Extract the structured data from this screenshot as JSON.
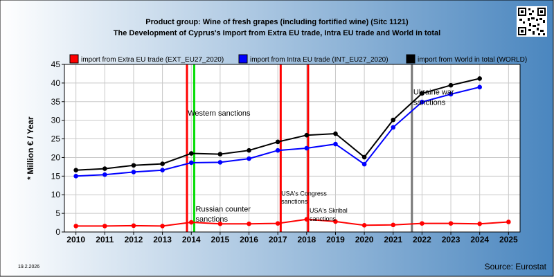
{
  "title_line1": "Product group: Wine of fresh grapes (including fortified wine) (Sitc 1121)",
  "title_line2": "The Development of Cyprus's Import from Extra EU trade, Intra EU trade and World in total",
  "ylabel": "* Million € / Year",
  "source": "Source: Eurostat",
  "date": "19.2.2026",
  "qr_icon": "qr-code-icon",
  "background": {
    "left": "#ffffff",
    "right": "#4a86bf"
  },
  "chart_data": {
    "type": "line",
    "x": [
      2010,
      2011,
      2012,
      2013,
      2014,
      2015,
      2016,
      2017,
      2018,
      2019,
      2020,
      2021,
      2022,
      2023,
      2024,
      2025
    ],
    "ylim": [
      0,
      45
    ],
    "yticks": [
      0,
      5,
      10,
      15,
      20,
      25,
      30,
      35,
      40,
      45
    ],
    "xlim": [
      2009.6,
      2025.4
    ],
    "grid": true,
    "legend_placement": "top",
    "series": [
      {
        "name": "import from Extra EU trade (EXT_EU27_2020)",
        "color": "#ff0000",
        "x": [
          2010,
          2011,
          2012,
          2013,
          2014,
          2015,
          2016,
          2017,
          2018,
          2019,
          2020,
          2021,
          2022,
          2023,
          2024,
          2025
        ],
        "values": [
          1.6,
          1.6,
          1.7,
          1.6,
          2.6,
          2.2,
          2.2,
          2.3,
          3.4,
          2.8,
          1.8,
          1.9,
          2.3,
          2.3,
          2.2,
          2.7
        ]
      },
      {
        "name": "import from Intra EU trade (INT_EU27_2020)",
        "color": "#0000ff",
        "x": [
          2010,
          2011,
          2012,
          2013,
          2014,
          2015,
          2016,
          2017,
          2018,
          2019,
          2020,
          2021,
          2022,
          2023,
          2024
        ],
        "values": [
          15.0,
          15.4,
          16.1,
          16.6,
          18.6,
          18.7,
          19.7,
          21.9,
          22.5,
          23.6,
          18.2,
          28.1,
          34.9,
          37.0,
          38.9
        ]
      },
      {
        "name": "import from World in total (WORLD)",
        "color": "#000000",
        "x": [
          2010,
          2011,
          2012,
          2013,
          2014,
          2015,
          2016,
          2017,
          2018,
          2019,
          2020,
          2021,
          2022,
          2023,
          2024
        ],
        "values": [
          16.6,
          17.0,
          17.9,
          18.3,
          21.1,
          20.9,
          21.9,
          24.2,
          26.0,
          26.4,
          20.1,
          30.1,
          37.2,
          39.4,
          41.2
        ]
      }
    ],
    "events": [
      {
        "x": 2013.85,
        "color": "#ff0000",
        "label": ""
      },
      {
        "x": 2014.1,
        "color": "#00dd00",
        "label": ""
      },
      {
        "x": 2017.1,
        "color": "#ff0000",
        "label": ""
      },
      {
        "x": 2018.05,
        "color": "#ff0000",
        "label": ""
      },
      {
        "x": 2021.65,
        "color": "#777777",
        "label": ""
      }
    ],
    "annotations": [
      {
        "text": "Western sanctions",
        "x": 2013.88,
        "y": 31.2,
        "size": "normal"
      },
      {
        "text": "Russian counter",
        "x": 2014.15,
        "y": 5.5,
        "size": "normal"
      },
      {
        "text": "sanctions",
        "x": 2014.15,
        "y": 2.8,
        "size": "normal"
      },
      {
        "text": "USA's Congress",
        "x": 2017.12,
        "y": 9.8,
        "size": "small"
      },
      {
        "text": "sanctions",
        "x": 2017.12,
        "y": 7.6,
        "size": "small"
      },
      {
        "text": "USA's Skribal",
        "x": 2018.1,
        "y": 5.2,
        "size": "small"
      },
      {
        "text": "sanctions",
        "x": 2018.1,
        "y": 3.0,
        "size": "small"
      },
      {
        "text": "Ukraine war",
        "x": 2021.7,
        "y": 36.9,
        "size": "normal"
      },
      {
        "text": "sanctions",
        "x": 2021.7,
        "y": 34.1,
        "size": "normal"
      }
    ]
  }
}
